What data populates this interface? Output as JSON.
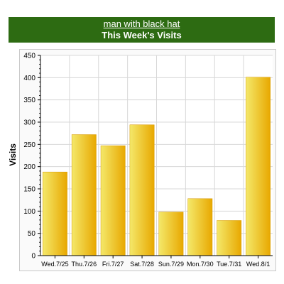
{
  "header": {
    "link_text": "man with black hat",
    "title": "This Week's Visits"
  },
  "colors": {
    "banner": "#2d6b12",
    "bar_light": "#f4e86a",
    "bar_dark": "#e8a800",
    "grid": "#d8d8d8"
  },
  "chart_data": {
    "type": "bar",
    "categories": [
      "Wed.7/25",
      "Thu.7/26",
      "Fri.7/27",
      "Sat.7/28",
      "Sun.7/29",
      "Mon.7/30",
      "Tue.7/31",
      "Wed.8/1"
    ],
    "values": [
      188,
      272,
      247,
      294,
      98,
      128,
      79,
      401
    ],
    "xlabel": "",
    "ylabel": "Visits",
    "ylim": [
      0,
      450
    ],
    "yticks": [
      0,
      50,
      100,
      150,
      200,
      250,
      300,
      350,
      400,
      450
    ],
    "grid": true,
    "legend": "none"
  }
}
